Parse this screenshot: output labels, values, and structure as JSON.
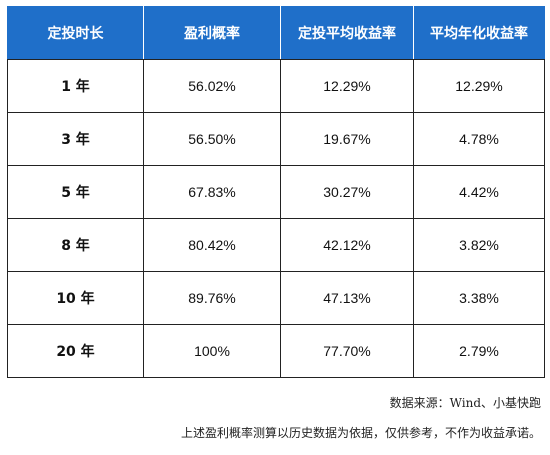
{
  "table": {
    "headers": [
      "定投时长",
      "盈利概率",
      "定投平均收益率",
      "平均年化收益率"
    ],
    "rows": [
      {
        "period": "1 年",
        "profit_prob": "56.02%",
        "avg_return": "12.29%",
        "annual_return": "12.29%"
      },
      {
        "period": "3 年",
        "profit_prob": "56.50%",
        "avg_return": "19.67%",
        "annual_return": "4.78%"
      },
      {
        "period": "5 年",
        "profit_prob": "67.83%",
        "avg_return": "30.27%",
        "annual_return": "4.42%"
      },
      {
        "period": "8 年",
        "profit_prob": "80.42%",
        "avg_return": "42.12%",
        "annual_return": "3.82%"
      },
      {
        "period": "10 年",
        "profit_prob": "89.76%",
        "avg_return": "47.13%",
        "annual_return": "3.38%"
      },
      {
        "period": "20 年",
        "profit_prob": "100%",
        "avg_return": "77.70%",
        "annual_return": "2.79%"
      }
    ]
  },
  "notes": {
    "source": "数据来源：Wind、小基快跑",
    "disclaimer": "上述盈利概率测算以历史数据为依据，仅供参考，不作为收益承诺。"
  },
  "colors": {
    "header_bg": "#1f6fc9",
    "header_text": "#ffffff"
  }
}
